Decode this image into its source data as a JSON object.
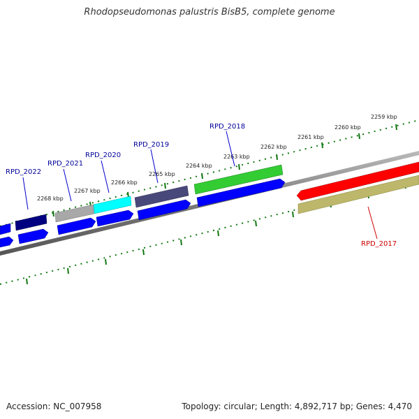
{
  "title": "Rhodopseudomonas palustris BisB5, complete genome",
  "footer": {
    "accession": "Accession: NC_007958",
    "stats": "Topology: circular; Length: 4,892,717 bp; Genes: 4,470"
  },
  "kbp_labels": [
    "2259 kbp",
    "2260 kbp",
    "2261 kbp",
    "2262 kbp",
    "2263 kbp",
    "2264 kbp",
    "2265 kbp",
    "2266 kbp",
    "2267 kbp",
    "2268 kbp"
  ],
  "gene_labels": [
    {
      "text": "RPD_2022",
      "color": "#000099"
    },
    {
      "text": "RPD_2021",
      "color": "#000099"
    },
    {
      "text": "RPD_2020",
      "color": "#000099"
    },
    {
      "text": "RPD_2019",
      "color": "#000099"
    },
    {
      "text": "RPD_2018",
      "color": "#000099"
    },
    {
      "text": "RPD_2017",
      "color": "#cc0000"
    }
  ],
  "colors": {
    "cds_blue": "#0000ff",
    "navy": "#000080",
    "gray": "#a8a8a8",
    "cyan": "#00ffff",
    "slate": "#48487a",
    "green": "#33cc33",
    "red": "#ff0000",
    "khaki": "#bdb76b",
    "tick_green": "#117711",
    "backbone": "#7a7a7a"
  }
}
